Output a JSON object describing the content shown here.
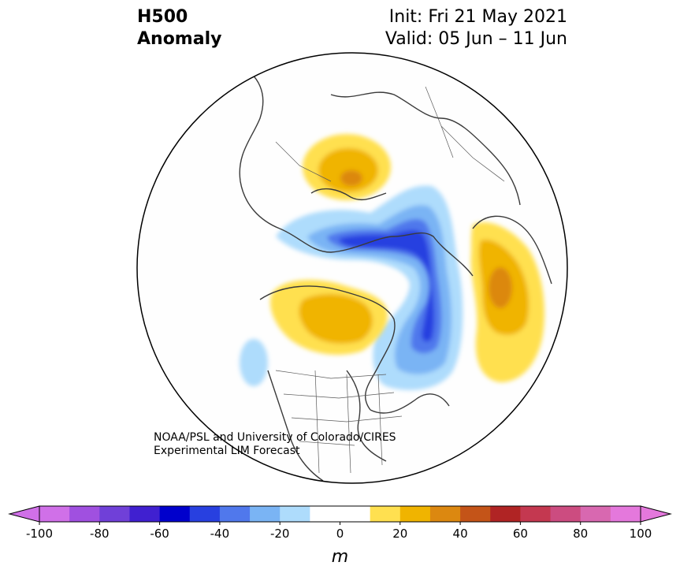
{
  "title": {
    "variable": "H500",
    "quantity": "Anomaly",
    "init": "Init: Fri 21 May 2021",
    "valid": "Valid: 05 Jun – 11 Jun"
  },
  "credit": {
    "line1": "NOAA/PSL and University of Colorado/CIRES",
    "line2": "Experimental LIM Forecast"
  },
  "colorbar": {
    "unit": "m",
    "ticks": [
      "-100",
      "-80",
      "-60",
      "-40",
      "-20",
      "0",
      "20",
      "40",
      "60",
      "80",
      "100"
    ],
    "levels": [
      -100,
      -90,
      -80,
      -70,
      -60,
      -50,
      -40,
      -30,
      -20,
      -10,
      10,
      20,
      30,
      40,
      50,
      60,
      70,
      80,
      90,
      100
    ],
    "colors": [
      "#d070e8",
      "#a050e0",
      "#7040d8",
      "#4020d0",
      "#0000cc",
      "#2840e0",
      "#5078ec",
      "#7ab4f4",
      "#aedcfc",
      "#ffffff",
      "#ffffff",
      "#ffe050",
      "#f0b400",
      "#dc8810",
      "#c45418",
      "#b02424",
      "#c43850",
      "#cc4c80",
      "#d868b0",
      "#e478dc"
    ],
    "extend": "both"
  },
  "map": {
    "projection": "north-polar-stereographic",
    "anomaly_centers": [
      {
        "region": "Scandinavia",
        "sign": "positive",
        "max_band": "30 to 40"
      },
      {
        "region": "Central Siberia / Arctic",
        "sign": "negative",
        "max_band": "-50 to -40"
      },
      {
        "region": "Alaska / Bering Sea",
        "sign": "positive",
        "max_band": "30 to 40"
      },
      {
        "region": "Northwest Canada",
        "sign": "positive",
        "max_band": "30 to 40"
      },
      {
        "region": "North Pacific",
        "sign": "negative",
        "max_band": "-20 to -10"
      }
    ]
  }
}
